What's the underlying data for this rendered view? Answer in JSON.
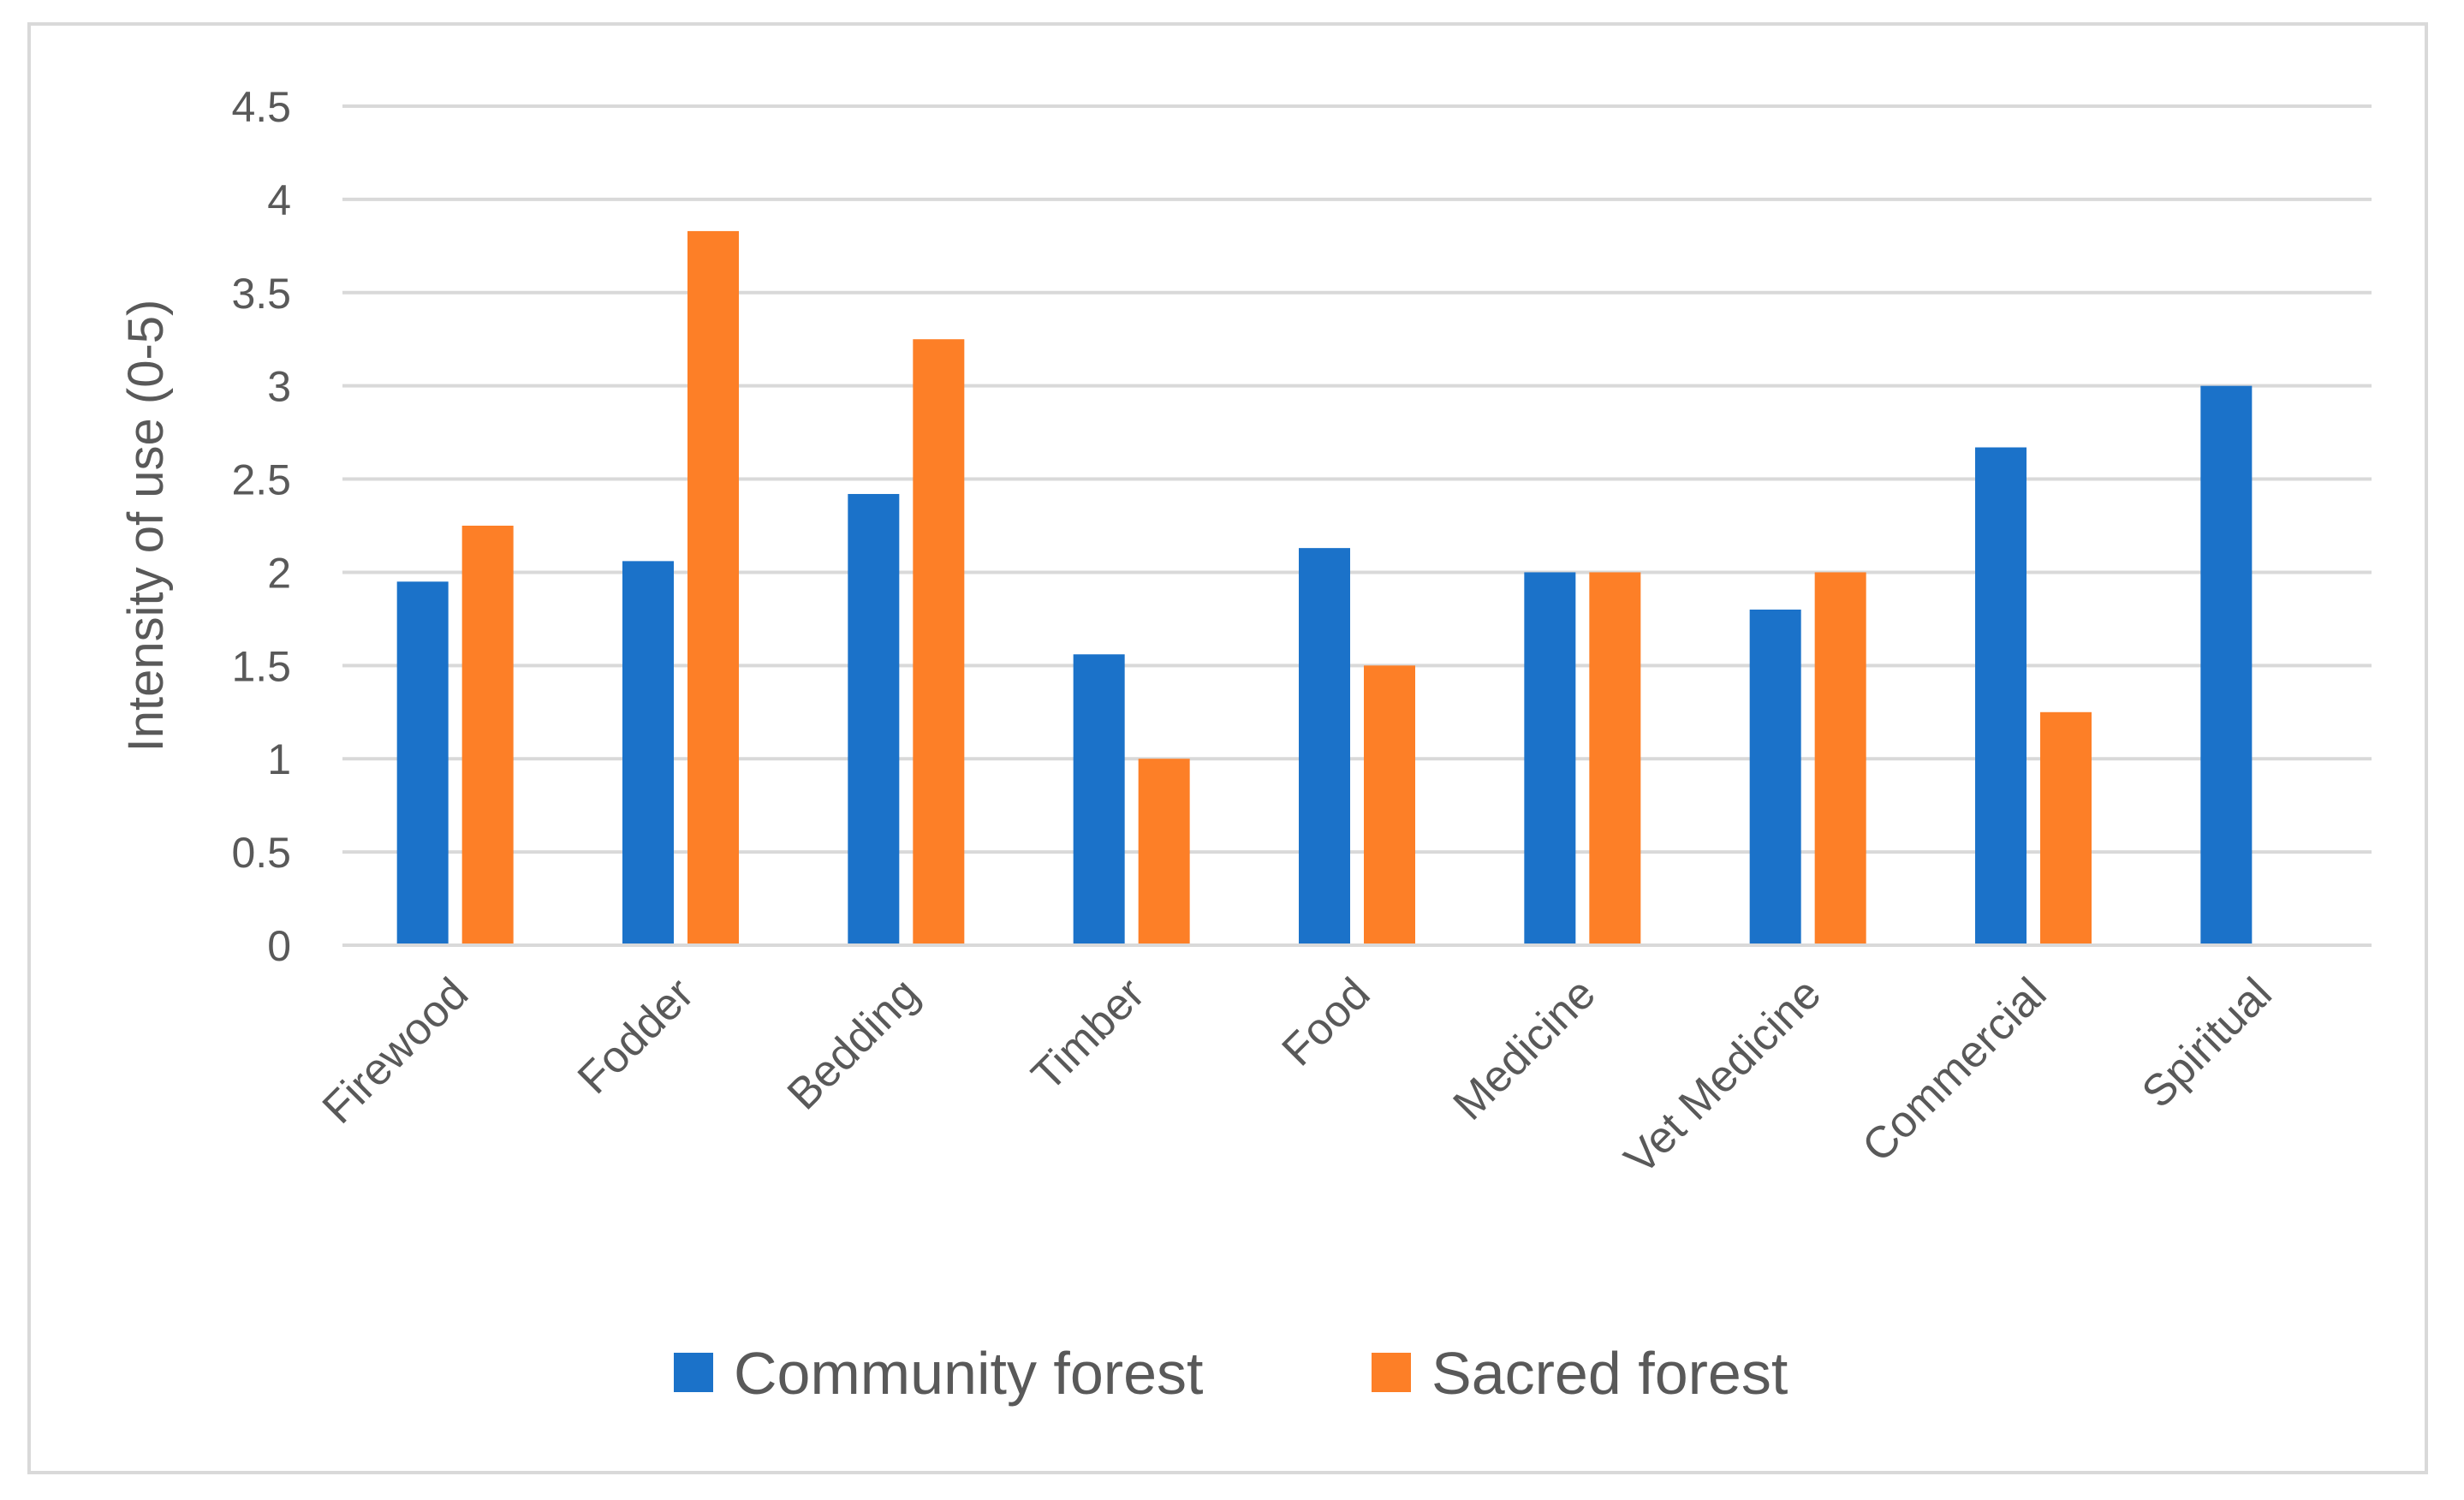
{
  "chart_data": {
    "type": "bar",
    "title": "",
    "xlabel": "",
    "ylabel": "Intensity of use (0-5)",
    "ylim": [
      0,
      4.5
    ],
    "yticks": [
      "0",
      "0.5",
      "1",
      "1.5",
      "2",
      "2.5",
      "3",
      "3.5",
      "4",
      "4.5"
    ],
    "grid": true,
    "legend_position": "bottom",
    "categories": [
      "Firewood",
      "Fodder",
      "Bedding",
      "Timber",
      "Food",
      "Medicine",
      "Vet Medicine",
      "Commercial",
      "Spiritual"
    ],
    "series": [
      {
        "name": "Community forest",
        "color": "#1b72c9",
        "values": [
          1.95,
          2.06,
          2.42,
          1.56,
          2.13,
          2.0,
          1.8,
          2.67,
          3.0
        ]
      },
      {
        "name": "Sacred forest",
        "color": "#fd7f27",
        "values": [
          2.25,
          3.83,
          3.25,
          1.0,
          1.5,
          2.0,
          2.0,
          1.25,
          0
        ]
      }
    ]
  }
}
